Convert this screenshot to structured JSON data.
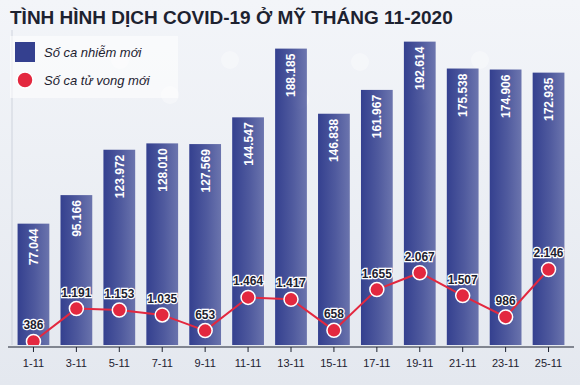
{
  "chart_data": {
    "type": "bar",
    "title": "TÌNH HÌNH DỊCH COVID-19 Ở MỸ THÁNG 11-2020",
    "categories": [
      "1-11",
      "3-11",
      "5-11",
      "7-11",
      "9-11",
      "11-11",
      "13-11",
      "15-11",
      "17-11",
      "19-11",
      "21-11",
      "23-11",
      "25-11"
    ],
    "series": [
      {
        "name": "Số ca nhiễm mới",
        "type": "bar",
        "color": "#34408f",
        "values": [
          77044,
          95166,
          123972,
          128010,
          127569,
          144547,
          188185,
          146838,
          161967,
          192614,
          175538,
          174906,
          172935
        ],
        "value_labels": [
          "77.044",
          "95.166",
          "123.972",
          "128.010",
          "127.569",
          "144.547",
          "188.185",
          "146.838",
          "161.967",
          "192.614",
          "175.538",
          "174.906",
          "172.935"
        ]
      },
      {
        "name": "Số ca tử vong mới",
        "type": "line",
        "axis": "y2",
        "color": "#e3283f",
        "marker": "circle",
        "line_style": "solid",
        "values": [
          386,
          1191,
          1153,
          1035,
          653,
          1464,
          1417,
          658,
          1655,
          2067,
          1507,
          986,
          2146
        ],
        "value_labels": [
          "386",
          "1.191",
          "1.153",
          "1.035",
          "653",
          "1.464",
          "1.417",
          "658",
          "1.655",
          "2.067",
          "1.507",
          "986",
          "2.146"
        ]
      }
    ],
    "ylim": [
      0,
      200000
    ],
    "y2lim": [
      300,
      8000
    ],
    "data_labels": true,
    "tick_labels": "x",
    "legend": "upper left",
    "grid": false
  }
}
